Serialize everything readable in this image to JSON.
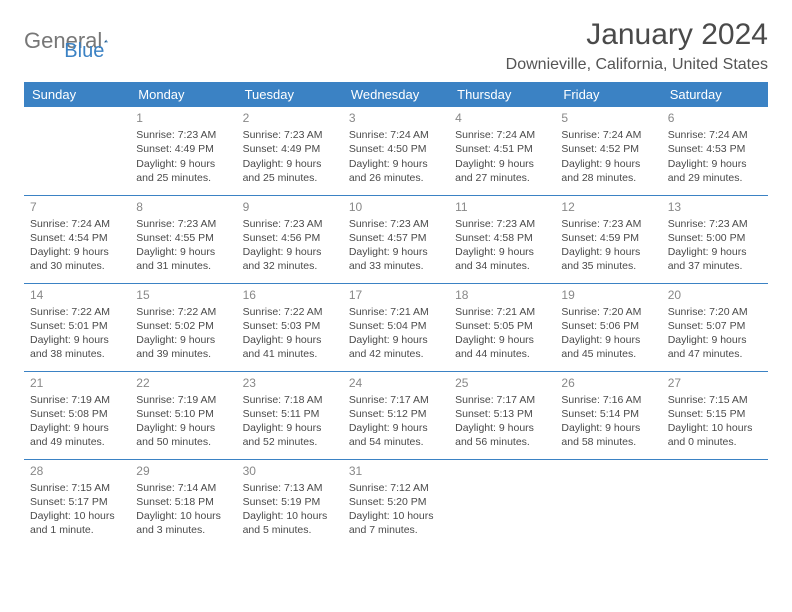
{
  "brand": {
    "part1": "General",
    "part2": "Blue"
  },
  "header": {
    "month_title": "January 2024",
    "location": "Downieville, California, United States"
  },
  "style": {
    "accent": "#3b82c4",
    "header_text": "#ffffff",
    "body_text": "#4a4a4a",
    "muted_text": "#888888",
    "background": "#ffffff"
  },
  "day_headers": [
    "Sunday",
    "Monday",
    "Tuesday",
    "Wednesday",
    "Thursday",
    "Friday",
    "Saturday"
  ],
  "weeks": [
    [
      null,
      {
        "n": "1",
        "sr": "Sunrise: 7:23 AM",
        "ss": "Sunset: 4:49 PM",
        "dl": "Daylight: 9 hours and 25 minutes."
      },
      {
        "n": "2",
        "sr": "Sunrise: 7:23 AM",
        "ss": "Sunset: 4:49 PM",
        "dl": "Daylight: 9 hours and 25 minutes."
      },
      {
        "n": "3",
        "sr": "Sunrise: 7:24 AM",
        "ss": "Sunset: 4:50 PM",
        "dl": "Daylight: 9 hours and 26 minutes."
      },
      {
        "n": "4",
        "sr": "Sunrise: 7:24 AM",
        "ss": "Sunset: 4:51 PM",
        "dl": "Daylight: 9 hours and 27 minutes."
      },
      {
        "n": "5",
        "sr": "Sunrise: 7:24 AM",
        "ss": "Sunset: 4:52 PM",
        "dl": "Daylight: 9 hours and 28 minutes."
      },
      {
        "n": "6",
        "sr": "Sunrise: 7:24 AM",
        "ss": "Sunset: 4:53 PM",
        "dl": "Daylight: 9 hours and 29 minutes."
      }
    ],
    [
      {
        "n": "7",
        "sr": "Sunrise: 7:24 AM",
        "ss": "Sunset: 4:54 PM",
        "dl": "Daylight: 9 hours and 30 minutes."
      },
      {
        "n": "8",
        "sr": "Sunrise: 7:23 AM",
        "ss": "Sunset: 4:55 PM",
        "dl": "Daylight: 9 hours and 31 minutes."
      },
      {
        "n": "9",
        "sr": "Sunrise: 7:23 AM",
        "ss": "Sunset: 4:56 PM",
        "dl": "Daylight: 9 hours and 32 minutes."
      },
      {
        "n": "10",
        "sr": "Sunrise: 7:23 AM",
        "ss": "Sunset: 4:57 PM",
        "dl": "Daylight: 9 hours and 33 minutes."
      },
      {
        "n": "11",
        "sr": "Sunrise: 7:23 AM",
        "ss": "Sunset: 4:58 PM",
        "dl": "Daylight: 9 hours and 34 minutes."
      },
      {
        "n": "12",
        "sr": "Sunrise: 7:23 AM",
        "ss": "Sunset: 4:59 PM",
        "dl": "Daylight: 9 hours and 35 minutes."
      },
      {
        "n": "13",
        "sr": "Sunrise: 7:23 AM",
        "ss": "Sunset: 5:00 PM",
        "dl": "Daylight: 9 hours and 37 minutes."
      }
    ],
    [
      {
        "n": "14",
        "sr": "Sunrise: 7:22 AM",
        "ss": "Sunset: 5:01 PM",
        "dl": "Daylight: 9 hours and 38 minutes."
      },
      {
        "n": "15",
        "sr": "Sunrise: 7:22 AM",
        "ss": "Sunset: 5:02 PM",
        "dl": "Daylight: 9 hours and 39 minutes."
      },
      {
        "n": "16",
        "sr": "Sunrise: 7:22 AM",
        "ss": "Sunset: 5:03 PM",
        "dl": "Daylight: 9 hours and 41 minutes."
      },
      {
        "n": "17",
        "sr": "Sunrise: 7:21 AM",
        "ss": "Sunset: 5:04 PM",
        "dl": "Daylight: 9 hours and 42 minutes."
      },
      {
        "n": "18",
        "sr": "Sunrise: 7:21 AM",
        "ss": "Sunset: 5:05 PM",
        "dl": "Daylight: 9 hours and 44 minutes."
      },
      {
        "n": "19",
        "sr": "Sunrise: 7:20 AM",
        "ss": "Sunset: 5:06 PM",
        "dl": "Daylight: 9 hours and 45 minutes."
      },
      {
        "n": "20",
        "sr": "Sunrise: 7:20 AM",
        "ss": "Sunset: 5:07 PM",
        "dl": "Daylight: 9 hours and 47 minutes."
      }
    ],
    [
      {
        "n": "21",
        "sr": "Sunrise: 7:19 AM",
        "ss": "Sunset: 5:08 PM",
        "dl": "Daylight: 9 hours and 49 minutes."
      },
      {
        "n": "22",
        "sr": "Sunrise: 7:19 AM",
        "ss": "Sunset: 5:10 PM",
        "dl": "Daylight: 9 hours and 50 minutes."
      },
      {
        "n": "23",
        "sr": "Sunrise: 7:18 AM",
        "ss": "Sunset: 5:11 PM",
        "dl": "Daylight: 9 hours and 52 minutes."
      },
      {
        "n": "24",
        "sr": "Sunrise: 7:17 AM",
        "ss": "Sunset: 5:12 PM",
        "dl": "Daylight: 9 hours and 54 minutes."
      },
      {
        "n": "25",
        "sr": "Sunrise: 7:17 AM",
        "ss": "Sunset: 5:13 PM",
        "dl": "Daylight: 9 hours and 56 minutes."
      },
      {
        "n": "26",
        "sr": "Sunrise: 7:16 AM",
        "ss": "Sunset: 5:14 PM",
        "dl": "Daylight: 9 hours and 58 minutes."
      },
      {
        "n": "27",
        "sr": "Sunrise: 7:15 AM",
        "ss": "Sunset: 5:15 PM",
        "dl": "Daylight: 10 hours and 0 minutes."
      }
    ],
    [
      {
        "n": "28",
        "sr": "Sunrise: 7:15 AM",
        "ss": "Sunset: 5:17 PM",
        "dl": "Daylight: 10 hours and 1 minute."
      },
      {
        "n": "29",
        "sr": "Sunrise: 7:14 AM",
        "ss": "Sunset: 5:18 PM",
        "dl": "Daylight: 10 hours and 3 minutes."
      },
      {
        "n": "30",
        "sr": "Sunrise: 7:13 AM",
        "ss": "Sunset: 5:19 PM",
        "dl": "Daylight: 10 hours and 5 minutes."
      },
      {
        "n": "31",
        "sr": "Sunrise: 7:12 AM",
        "ss": "Sunset: 5:20 PM",
        "dl": "Daylight: 10 hours and 7 minutes."
      },
      null,
      null,
      null
    ]
  ]
}
